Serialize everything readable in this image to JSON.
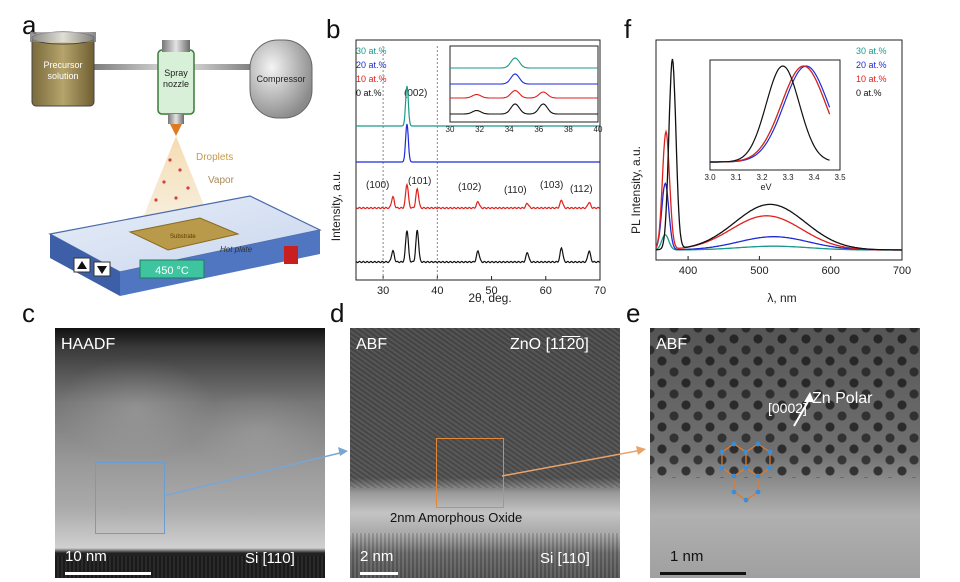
{
  "panels": {
    "a": {
      "letter": "a",
      "precursor": [
        "Precursor",
        "solution"
      ],
      "nozzle": [
        "Spray",
        "nozzle"
      ],
      "compressor": "Compressor",
      "droplets": "Droplets",
      "vapor": "Vapor",
      "substrate": "Substrate",
      "hotplate": "Hot plate",
      "temperature": "450 °C",
      "up_icon": "up-triangle-icon",
      "down_icon": "down-triangle-icon"
    },
    "b": {
      "letter": "b",
      "legend": [
        {
          "label": "30 at.%",
          "color": "#1a9a8a"
        },
        {
          "label": "20 at.%",
          "color": "#1f2bd6"
        },
        {
          "label": "10 at.%",
          "color": "#e0201c"
        },
        {
          "label": "0 at.%",
          "color": "#111111"
        }
      ],
      "peaks": [
        "(002)",
        "(100)",
        "(101)",
        "(102)",
        "(110)",
        "(103)",
        "(112)"
      ]
    },
    "c": {
      "letter": "c",
      "mode": "HAADF",
      "scalebar": "10 nm",
      "orientation": "Si [110]"
    },
    "d": {
      "letter": "d",
      "mode": "ABF",
      "zone": "ZnO [11̅2̅̅0]",
      "oxide": "2nm Amorphous Oxide",
      "scalebar": "2 nm",
      "orientation": "Si [110]"
    },
    "e": {
      "letter": "e",
      "mode": "ABF",
      "direction": "[0002]",
      "polarity": "Zn Polar",
      "scalebar": "1 nm"
    },
    "f": {
      "letter": "f",
      "legend": [
        {
          "label": "30 at.%",
          "color": "#1a9a8a"
        },
        {
          "label": "20 at.%",
          "color": "#1f2bd6"
        },
        {
          "label": "10 at.%",
          "color": "#e0201c"
        },
        {
          "label": "0 at.%",
          "color": "#111111"
        }
      ]
    }
  },
  "chart_data": [
    {
      "type": "line",
      "xlabel": "2θ, deg.",
      "ylabel": "Intensity, a.u.",
      "xlim": [
        25,
        70
      ],
      "xticks": [
        30,
        40,
        50,
        60,
        70
      ],
      "vertical_guides": [
        30,
        40
      ],
      "series": [
        {
          "name": "30 at.%",
          "peaks": [
            [
              34.4,
              1.0
            ]
          ]
        },
        {
          "name": "20 at.%",
          "peaks": [
            [
              34.4,
              1.0
            ]
          ]
        },
        {
          "name": "10 at.%",
          "peaks": [
            [
              31.8,
              0.35
            ],
            [
              34.4,
              0.75
            ],
            [
              36.3,
              0.6
            ],
            [
              47.5,
              0.2
            ],
            [
              56.6,
              0.15
            ],
            [
              62.9,
              0.25
            ],
            [
              68.0,
              0.18
            ]
          ]
        },
        {
          "name": "0 at.%",
          "peaks": [
            [
              31.8,
              0.35
            ],
            [
              34.4,
              1.0
            ],
            [
              36.3,
              1.0
            ],
            [
              47.5,
              0.35
            ],
            [
              56.6,
              0.3
            ],
            [
              62.9,
              0.45
            ],
            [
              68.0,
              0.35
            ]
          ]
        }
      ],
      "inset": {
        "xlim": [
          30,
          40
        ],
        "xticks": [
          30,
          32,
          34,
          36,
          38,
          40
        ]
      }
    },
    {
      "type": "line",
      "xlabel": "λ, nm",
      "ylabel": "PL Intensity, a.u.",
      "xlim": [
        355,
        700
      ],
      "xticks": [
        400,
        500,
        600,
        700
      ],
      "series": [
        {
          "name": "30 at.%",
          "uv_peak_nm": 368,
          "uv_height": 0.08,
          "visible_peak_nm": 520,
          "visible_height": 0.02
        },
        {
          "name": "20 at.%",
          "uv_peak_nm": 368,
          "uv_height": 0.35,
          "visible_peak_nm": 520,
          "visible_height": 0.07
        },
        {
          "name": "10 at.%",
          "uv_peak_nm": 369,
          "uv_height": 0.62,
          "visible_peak_nm": 510,
          "visible_height": 0.18
        },
        {
          "name": "0 at.%",
          "uv_peak_nm": 378,
          "uv_height": 1.0,
          "visible_peak_nm": 515,
          "visible_height": 0.24
        }
      ],
      "inset": {
        "xlabel": "eV",
        "xlim": [
          3.0,
          3.5
        ],
        "xticks": [
          3.0,
          3.1,
          3.2,
          3.3,
          3.4,
          3.5
        ]
      }
    }
  ]
}
